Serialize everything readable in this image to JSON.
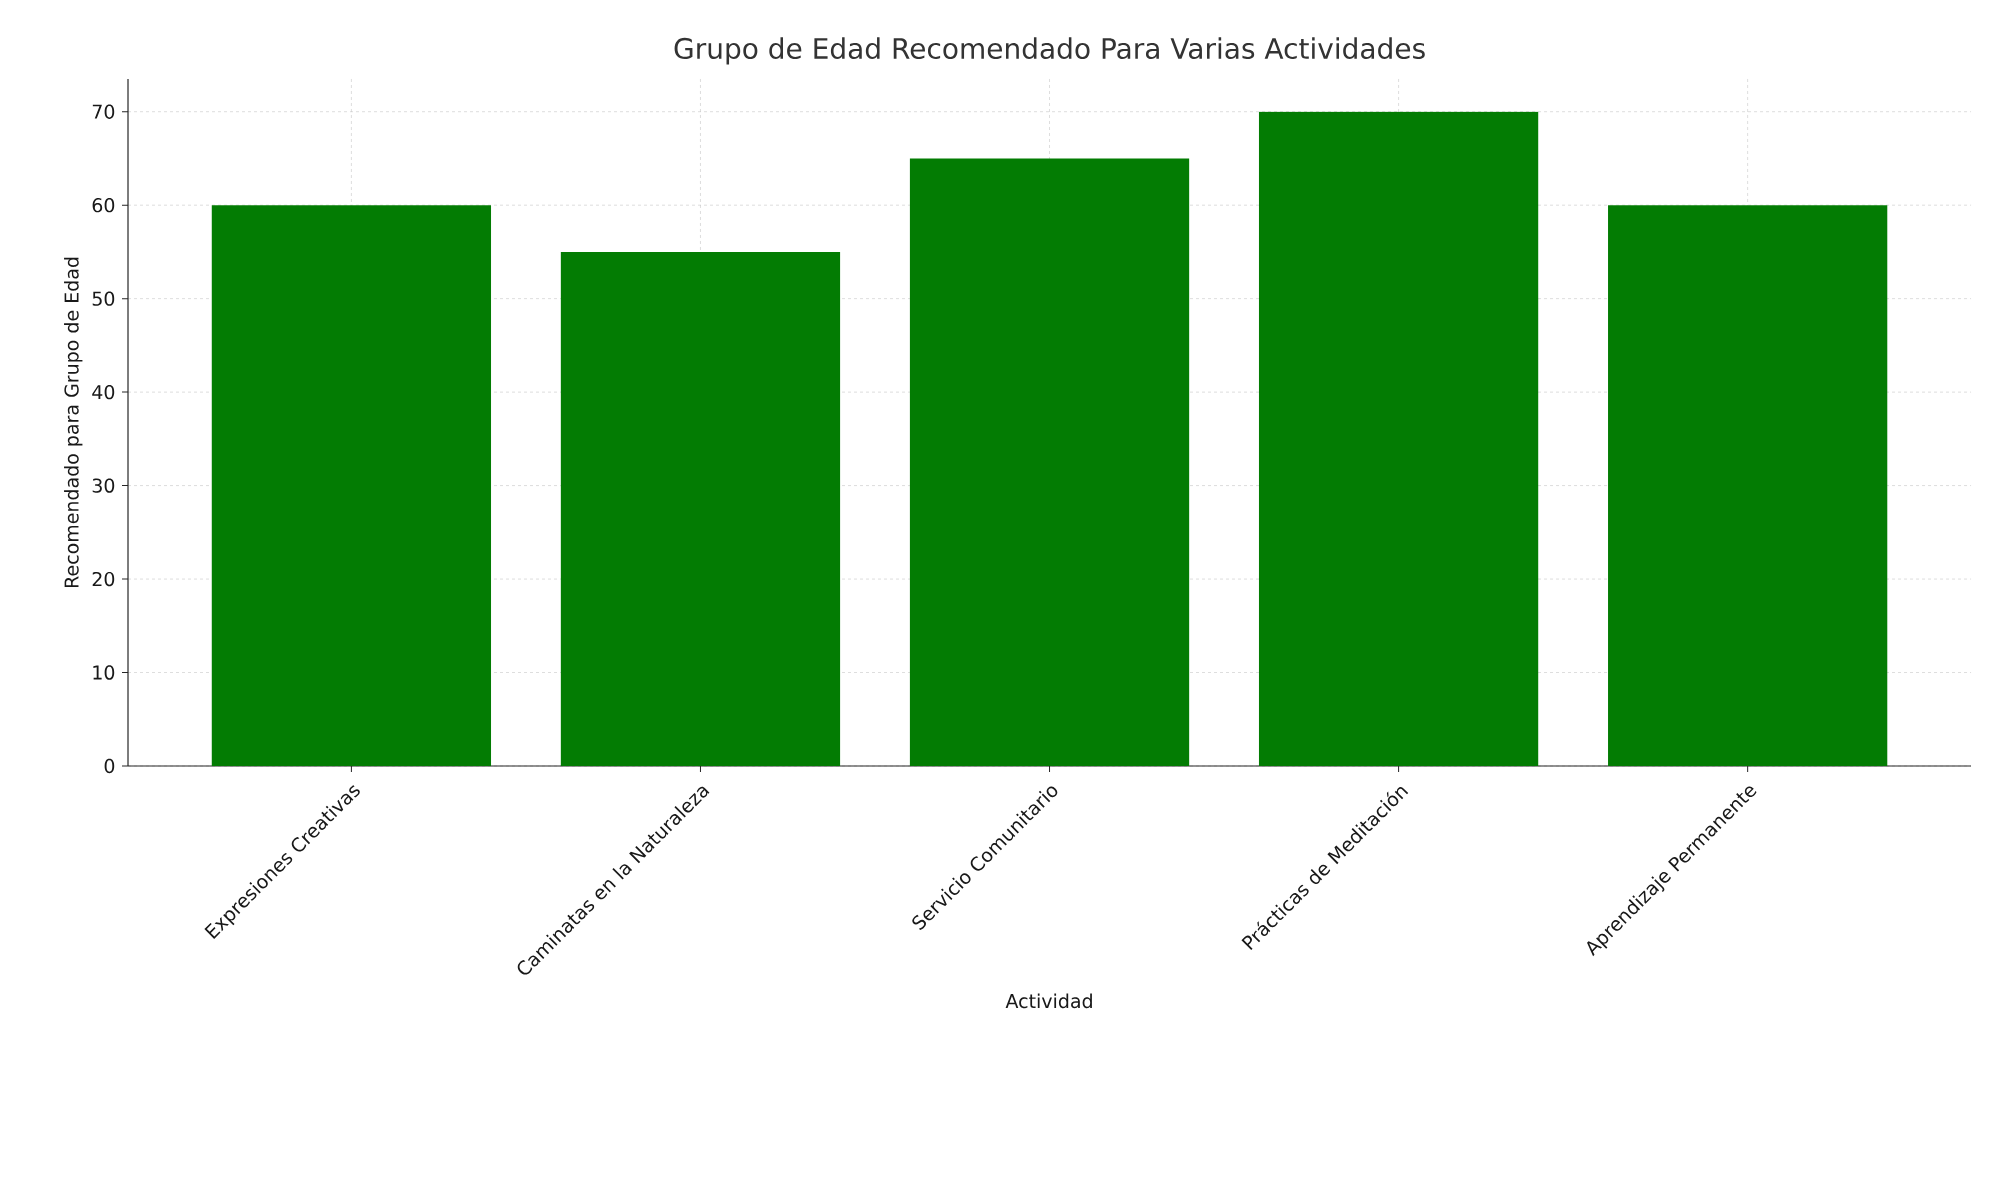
{
  "chart_data": {
    "type": "bar",
    "title": "Grupo de Edad Recomendado Para Varias Actividades",
    "xlabel": "Actividad",
    "ylabel": "Recomendado para Grupo de Edad",
    "categories": [
      "Expresiones Creativas",
      "Caminatas en la Naturaleza",
      "Servicio Comunitario",
      "Prácticas de Meditación",
      "Aprendizaje Permanente"
    ],
    "values": [
      60,
      55,
      65,
      70,
      60
    ],
    "color": "#037c03",
    "ylim": [
      0,
      73.5
    ],
    "yticks": [
      0,
      10,
      20,
      30,
      40,
      50,
      60,
      70
    ],
    "grid": true
  }
}
